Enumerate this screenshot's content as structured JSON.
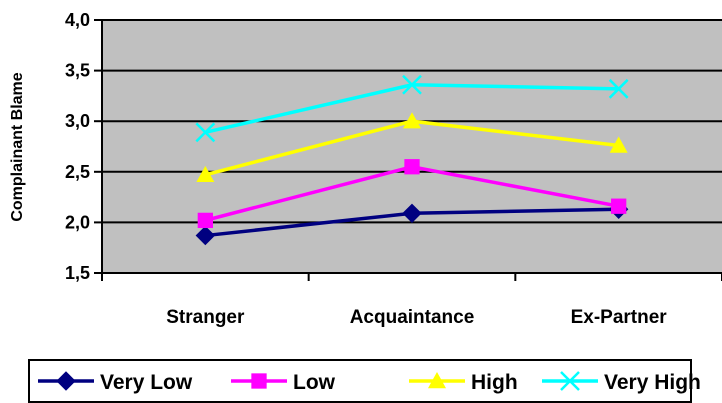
{
  "chart_data": {
    "type": "line",
    "categories": [
      "Stranger",
      "Acquaintance",
      "Ex-Partner"
    ],
    "ylabel": "Complainant Blame",
    "xlabel": "",
    "ylim": [
      1.5,
      4.0
    ],
    "yticks": [
      "1,5",
      "2,0",
      "2,5",
      "3,0",
      "3,5",
      "4,0"
    ],
    "grid": true,
    "legend_position": "bottom",
    "plot_background": "#c0c0c0",
    "series": [
      {
        "name": "Very Low",
        "values": [
          1.87,
          2.09,
          2.13
        ],
        "color": "#000080",
        "marker": "diamond"
      },
      {
        "name": "Low",
        "values": [
          2.02,
          2.55,
          2.16
        ],
        "color": "#ff00ff",
        "marker": "square"
      },
      {
        "name": "High",
        "values": [
          2.47,
          3.0,
          2.76
        ],
        "color": "#ffff00",
        "marker": "triangle"
      },
      {
        "name": "Very High",
        "values": [
          2.89,
          3.36,
          3.32
        ],
        "color": "#00ffff",
        "marker": "x"
      }
    ]
  }
}
